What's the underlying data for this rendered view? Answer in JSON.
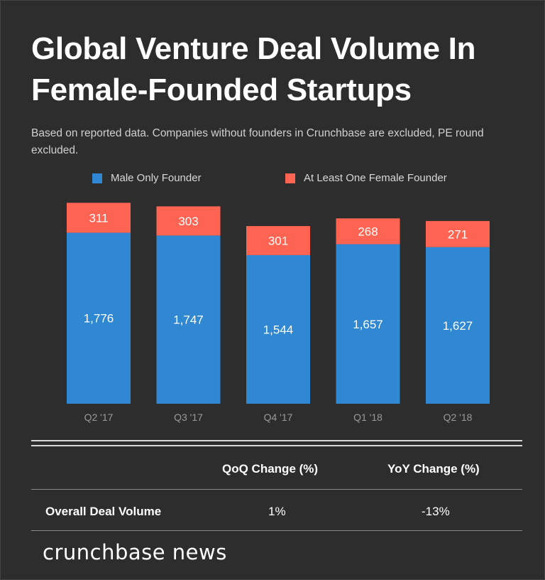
{
  "header": {
    "title": "Global Venture Deal Volume In Female-Founded Startups",
    "subtitle": "Based on reported data. Companies without founders in Crunchbase are excluded, PE round excluded."
  },
  "colors": {
    "male": "#2f88d1",
    "female": "#ff6453",
    "background": "#2d2d2d",
    "axis_label": "#9a9a9a"
  },
  "chart_data": {
    "type": "bar",
    "stacked": true,
    "title": "Global Venture Deal Volume In Female-Founded Startups",
    "categories": [
      "Q2 '17",
      "Q3 '17",
      "Q4 '17",
      "Q1 '18",
      "Q2 '18"
    ],
    "series": [
      {
        "name": "Male Only Founder",
        "values": [
          1776,
          1747,
          1544,
          1657,
          1627
        ],
        "labels": [
          "1,776",
          "1,747",
          "1,544",
          "1,657",
          "1,627"
        ]
      },
      {
        "name": "At Least One Female Founder",
        "values": [
          311,
          303,
          301,
          268,
          271
        ],
        "labels": [
          "311",
          "303",
          "301",
          "268",
          "271"
        ]
      }
    ],
    "ylim": [
      0,
      2200
    ],
    "grid": false,
    "legend": "top"
  },
  "table": {
    "headers": [
      "QoQ Change (%)",
      "YoY Change (%)"
    ],
    "rows": [
      {
        "label": "Overall Deal Volume",
        "qoq": "1%",
        "yoy": "-13%"
      }
    ]
  },
  "footer": {
    "brand": "crunchbase news"
  }
}
